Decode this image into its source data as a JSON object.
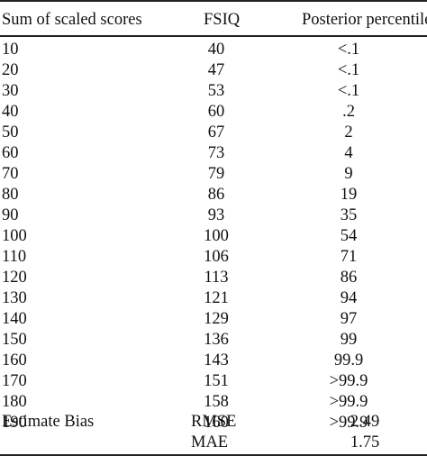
{
  "header": {
    "col1": "Sum of scaled scores",
    "col2": "FSIQ",
    "col3": "Posterior percentile"
  },
  "rows": [
    {
      "score": "10",
      "fsiq": "40",
      "post": "<.1"
    },
    {
      "score": "20",
      "fsiq": "47",
      "post": "<.1"
    },
    {
      "score": "30",
      "fsiq": "53",
      "post": "<.1"
    },
    {
      "score": "40",
      "fsiq": "60",
      "post": ".2"
    },
    {
      "score": "50",
      "fsiq": "67",
      "post": "2"
    },
    {
      "score": "60",
      "fsiq": "73",
      "post": "4"
    },
    {
      "score": "70",
      "fsiq": "79",
      "post": "9"
    },
    {
      "score": "80",
      "fsiq": "86",
      "post": "19"
    },
    {
      "score": "90",
      "fsiq": "93",
      "post": "35"
    },
    {
      "score": "100",
      "fsiq": "100",
      "post": "54"
    },
    {
      "score": "110",
      "fsiq": "106",
      "post": "71"
    },
    {
      "score": "120",
      "fsiq": "113",
      "post": "86"
    },
    {
      "score": "130",
      "fsiq": "121",
      "post": "94"
    },
    {
      "score": "140",
      "fsiq": "129",
      "post": "97"
    },
    {
      "score": "150",
      "fsiq": "136",
      "post": "99"
    },
    {
      "score": "160",
      "fsiq": "143",
      "post": "99.9"
    },
    {
      "score": "170",
      "fsiq": "151",
      "post": ">99.9"
    },
    {
      "score": "180",
      "fsiq": "158",
      "post": ">99.9"
    },
    {
      "score": "190",
      "fsiq": "160",
      "post": ">99.9"
    }
  ],
  "footer": {
    "label": "Estimate Bias",
    "rmse_label": "RMSE",
    "rmse_value": "2.49",
    "mae_label": "MAE",
    "mae_value": "1.75"
  }
}
